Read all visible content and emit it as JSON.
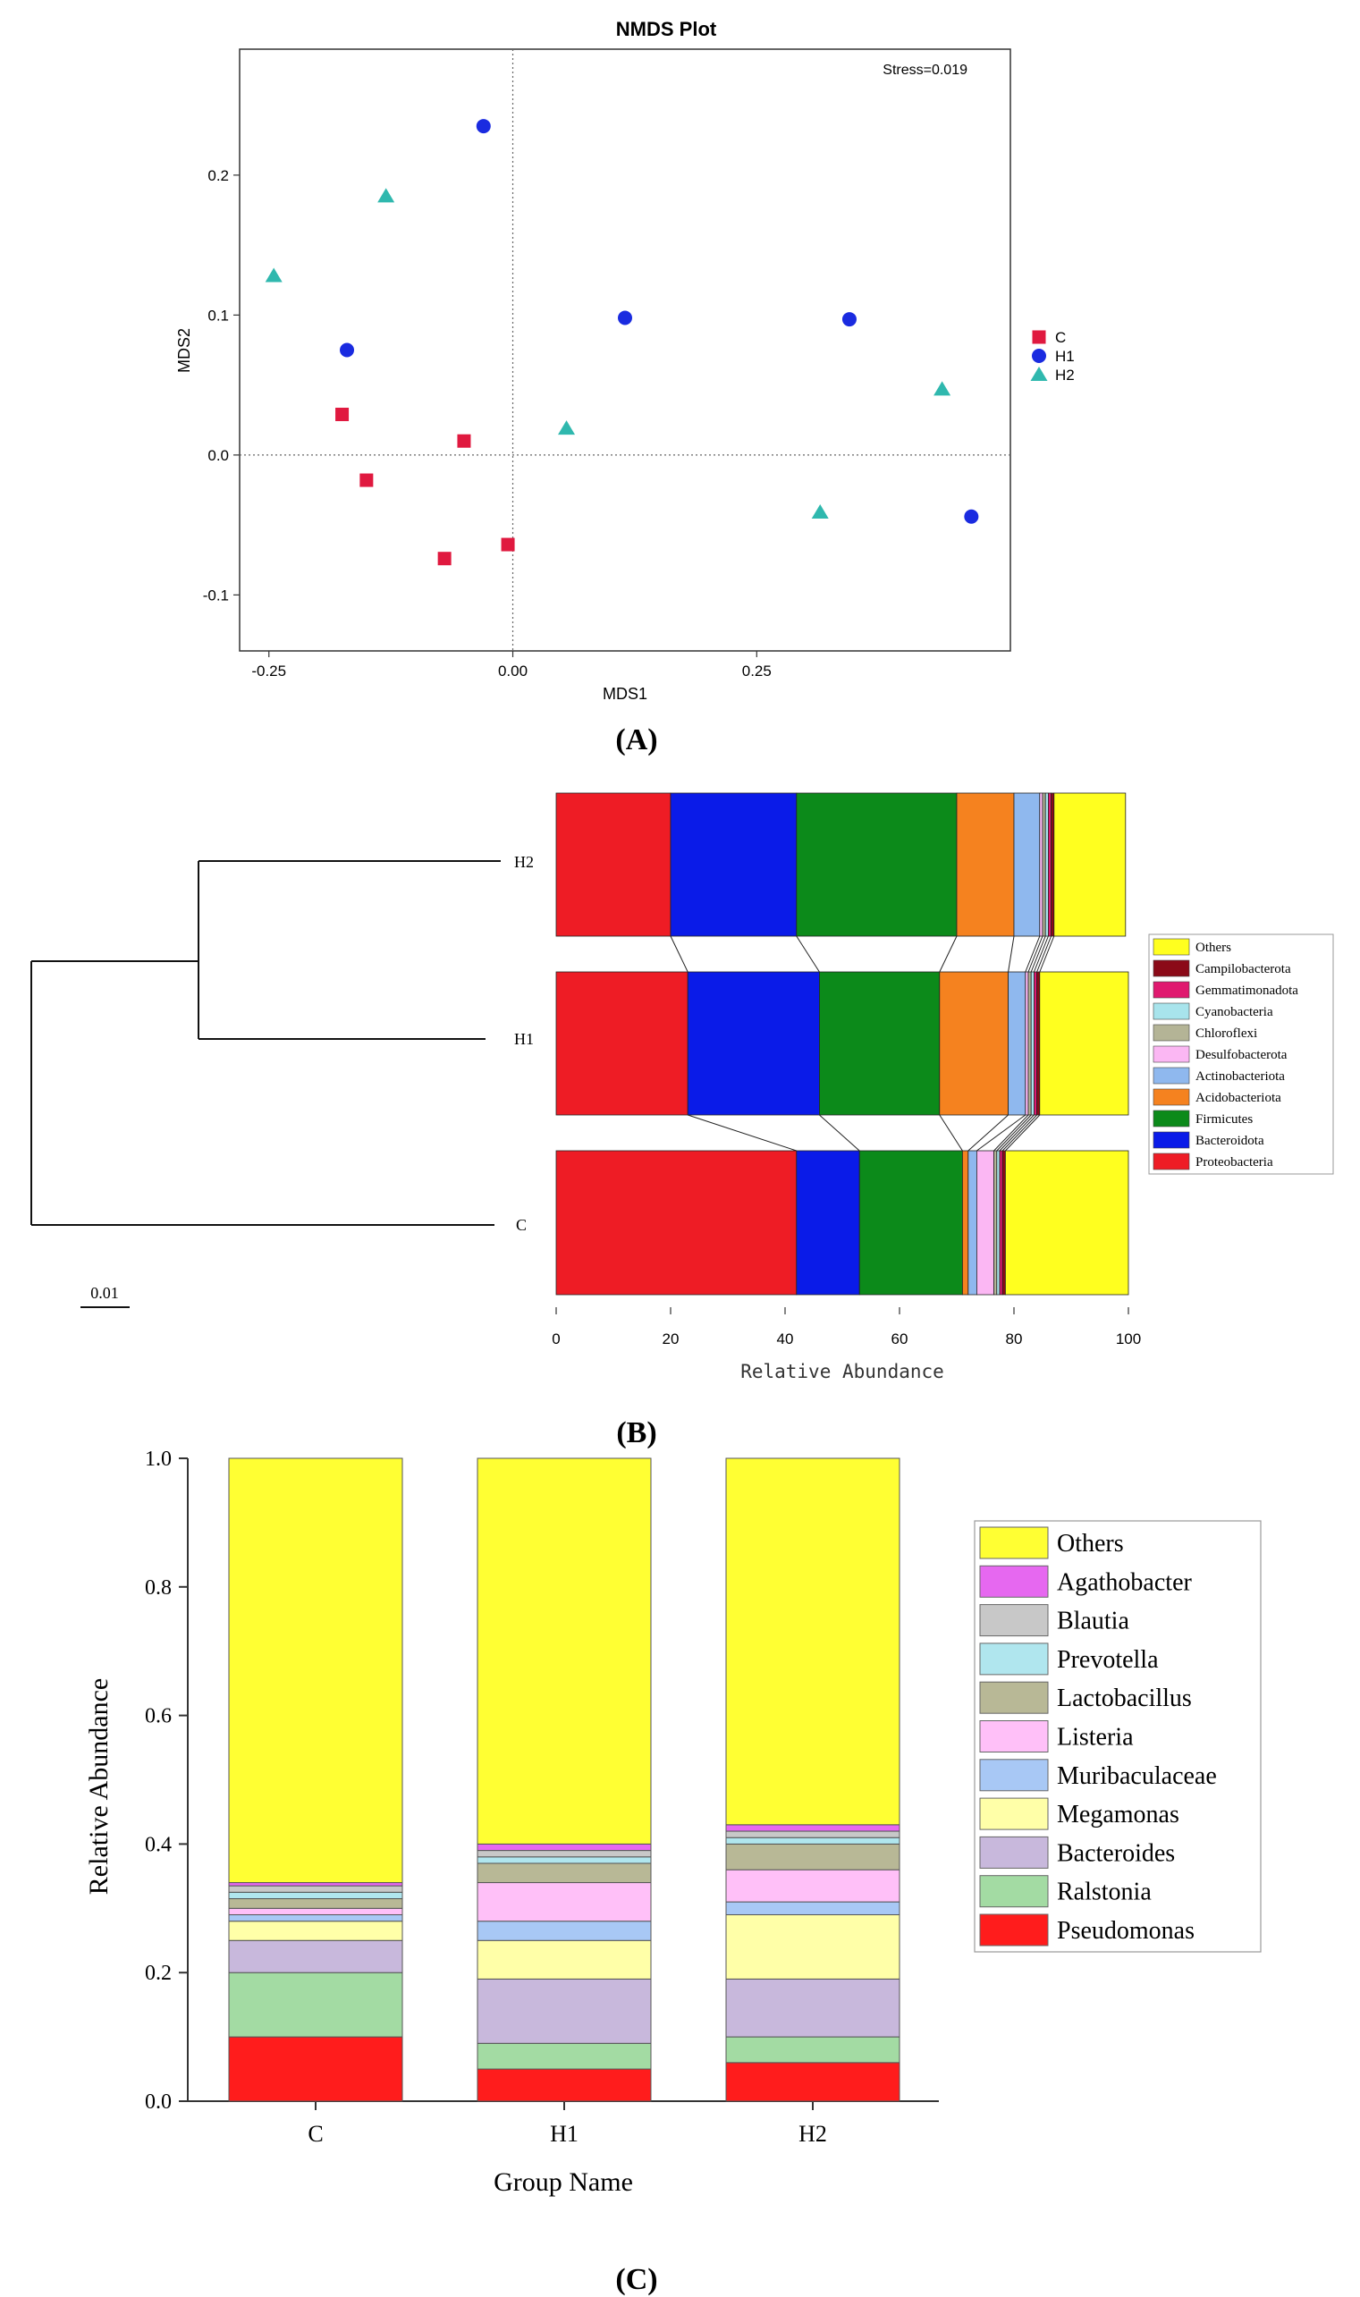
{
  "panel_labels": {
    "a": "(A)",
    "b": "(B)",
    "c": "(C)"
  },
  "colors": {
    "C": "#e0193f",
    "H1": "#1a2be0",
    "H2": "#2fb8ae",
    "phyla": [
      "#ee1c25",
      "#0a1be8",
      "#0c8a1a",
      "#f5821f",
      "#8fb8ee",
      "#fbb7f3",
      "#b4b496",
      "#a8e4ec",
      "#e0196f",
      "#8b0a18",
      "#ffff1f"
    ],
    "genera": [
      "#ff1c1c",
      "#a3dba3",
      "#c8b8dc",
      "#ffffa8",
      "#a8c8f5",
      "#ffc0f8",
      "#b8b896",
      "#b0e6ee",
      "#c8c8c8",
      "#e668f0",
      "#ffff33"
    ]
  },
  "chart_data": [
    {
      "type": "scatter",
      "title": "NMDS Plot",
      "xlabel": "MDS1",
      "ylabel": "MDS2",
      "annotation": "Stress=0.019",
      "xlim": [
        -0.28,
        0.51
      ],
      "ylim": [
        -0.14,
        0.29
      ],
      "xticks": [
        "-0.25",
        "0.00",
        "0.25"
      ],
      "xtick_values": [
        -0.25,
        0,
        0.25
      ],
      "yticks": [
        "-0.1",
        "0.0",
        "0.1",
        "0.2"
      ],
      "ytick_values": [
        -0.1,
        0,
        0.1,
        0.2
      ],
      "legend_position": "right",
      "series": [
        {
          "name": "C",
          "marker": "square",
          "points": [
            [
              -0.175,
              0.029
            ],
            [
              -0.15,
              -0.018
            ],
            [
              -0.05,
              0.01
            ],
            [
              -0.07,
              -0.074
            ],
            [
              -0.005,
              -0.064
            ]
          ]
        },
        {
          "name": "H1",
          "marker": "circle",
          "points": [
            [
              -0.03,
              0.235
            ],
            [
              -0.17,
              0.075
            ],
            [
              0.115,
              0.098
            ],
            [
              0.345,
              0.097
            ],
            [
              0.47,
              -0.044
            ]
          ]
        },
        {
          "name": "H2",
          "marker": "triangle",
          "points": [
            [
              -0.245,
              0.128
            ],
            [
              -0.13,
              0.185
            ],
            [
              0.055,
              0.019
            ],
            [
              0.315,
              -0.041
            ],
            [
              0.44,
              0.047
            ]
          ]
        }
      ]
    },
    {
      "type": "bar",
      "orientation": "horizontal-stacked",
      "xlabel": "Relative Abundance",
      "xlim": [
        0,
        100
      ],
      "xticks": [
        "0",
        "20",
        "40",
        "60",
        "80",
        "100"
      ],
      "xtick_values": [
        0,
        20,
        40,
        60,
        80,
        100
      ],
      "scale_label": "0.01",
      "categories": [
        "H2",
        "H1",
        "C"
      ],
      "legend_order": [
        "Others",
        "Campilobacterota",
        "Gemmatimonadota",
        "Cyanobacteria",
        "Chloroflexi",
        "Desulfobacterota",
        "Actinobacteriota",
        "Acidobacteriota",
        "Firmicutes",
        "Bacteroidota",
        "Proteobacteria"
      ],
      "series": [
        {
          "name": "Proteobacteria",
          "values": [
            20,
            23,
            42
          ]
        },
        {
          "name": "Bacteroidota",
          "values": [
            22,
            23,
            11
          ]
        },
        {
          "name": "Firmicutes",
          "values": [
            28,
            21,
            18
          ]
        },
        {
          "name": "Acidobacteriota",
          "values": [
            10,
            12,
            1
          ]
        },
        {
          "name": "Actinobacteriota",
          "values": [
            4.5,
            3,
            1.5
          ]
        },
        {
          "name": "Desulfobacterota",
          "values": [
            0.5,
            0.5,
            3
          ]
        },
        {
          "name": "Chloroflexi",
          "values": [
            0.5,
            0.5,
            0.5
          ]
        },
        {
          "name": "Cyanobacteria",
          "values": [
            0.5,
            0.5,
            0.5
          ]
        },
        {
          "name": "Gemmatimonadota",
          "values": [
            0.5,
            0.5,
            0.5
          ]
        },
        {
          "name": "Campilobacterota",
          "values": [
            0.5,
            0.5,
            0.5
          ]
        },
        {
          "name": "Others",
          "values": [
            12.5,
            15.5,
            21.5
          ]
        }
      ]
    },
    {
      "type": "bar",
      "orientation": "vertical-stacked",
      "xlabel": "Group Name",
      "ylabel": "Relative Abundance",
      "ylim": [
        0,
        1
      ],
      "yticks": [
        "0.0",
        "0.2",
        "0.4",
        "0.6",
        "0.8",
        "1.0"
      ],
      "ytick_values": [
        0,
        0.2,
        0.4,
        0.6,
        0.8,
        1.0
      ],
      "categories": [
        "C",
        "H1",
        "H2"
      ],
      "legend_order": [
        "Others",
        "Agathobacter",
        "Blautia",
        "Prevotella",
        "Lactobacillus",
        "Listeria",
        "Muribaculaceae",
        "Megamonas",
        "Bacteroides",
        "Ralstonia",
        "Pseudomonas"
      ],
      "series": [
        {
          "name": "Pseudomonas",
          "values": [
            0.1,
            0.05,
            0.06
          ]
        },
        {
          "name": "Ralstonia",
          "values": [
            0.1,
            0.04,
            0.04
          ]
        },
        {
          "name": "Bacteroides",
          "values": [
            0.05,
            0.1,
            0.09
          ]
        },
        {
          "name": "Megamonas",
          "values": [
            0.03,
            0.06,
            0.1
          ]
        },
        {
          "name": "Muribaculaceae",
          "values": [
            0.01,
            0.03,
            0.02
          ]
        },
        {
          "name": "Listeria",
          "values": [
            0.01,
            0.06,
            0.05
          ]
        },
        {
          "name": "Lactobacillus",
          "values": [
            0.015,
            0.03,
            0.04
          ]
        },
        {
          "name": "Prevotella",
          "values": [
            0.01,
            0.01,
            0.01
          ]
        },
        {
          "name": "Blautia",
          "values": [
            0.01,
            0.01,
            0.01
          ]
        },
        {
          "name": "Agathobacter",
          "values": [
            0.005,
            0.01,
            0.01
          ]
        },
        {
          "name": "Others",
          "values": [
            0.66,
            0.6,
            0.57
          ]
        }
      ]
    }
  ]
}
